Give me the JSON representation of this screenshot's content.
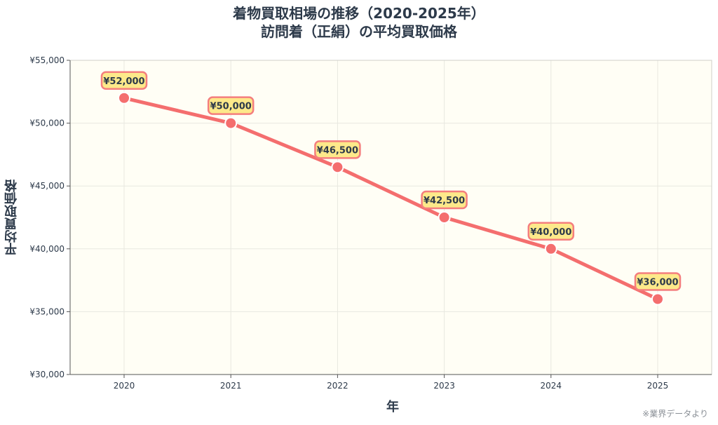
{
  "title_line1": "着物買取相場の推移（2020-2025年）",
  "title_line2": "訪問着（正絹）の平均買取価格",
  "note": "※業界データより",
  "colors": {
    "line": "#f46e6e",
    "plot_bg": "#fffef5",
    "label_bg": "#fde98a",
    "label_border": "#f47e7e"
  },
  "chart_data": {
    "type": "line",
    "title": "着物買取相場の推移（2020-2025年） 訪問着（正絹）の平均買取価格",
    "xlabel": "年",
    "ylabel": "平均買取価格",
    "x": [
      "2020",
      "2021",
      "2022",
      "2023",
      "2024",
      "2025"
    ],
    "y_ticks": [
      "¥30,000",
      "¥35,000",
      "¥40,000",
      "¥45,000",
      "¥50,000",
      "¥55,000"
    ],
    "ylim": [
      30000,
      55000
    ],
    "grid": true,
    "series": [
      {
        "values": [
          52000,
          50000,
          46500,
          42500,
          40000,
          36000
        ],
        "labels": [
          "¥52,000",
          "¥50,000",
          "¥46,500",
          "¥42,500",
          "¥40,000",
          "¥36,000"
        ]
      }
    ]
  }
}
